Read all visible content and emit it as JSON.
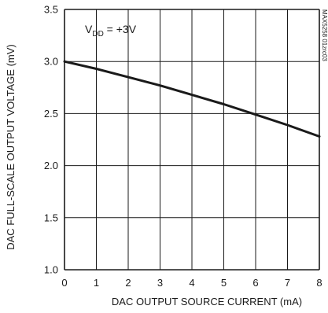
{
  "chart_data": {
    "type": "line",
    "xlabel": "DAC OUTPUT SOURCE CURRENT (mA)",
    "ylabel": "DAC FULL-SCALE OUTPUT VOLTAGE (mV)",
    "xlim": [
      0,
      8
    ],
    "ylim": [
      1.0,
      3.5
    ],
    "x_ticks": [
      "0",
      "1",
      "2",
      "3",
      "4",
      "5",
      "6",
      "7",
      "8"
    ],
    "y_ticks": [
      "3.5",
      "3.0",
      "2.5",
      "2.0",
      "1.5",
      "1.0"
    ],
    "grid": true,
    "annotation": {
      "main": "V",
      "sub": "DD",
      "rest": " = +3V"
    },
    "side_code": "MAX5258 01zrc03",
    "series": [
      {
        "x": [
          0,
          1,
          2,
          3,
          4,
          5,
          6,
          7,
          8
        ],
        "values": [
          3.0,
          2.93,
          2.85,
          2.77,
          2.68,
          2.59,
          2.49,
          2.39,
          2.28
        ]
      }
    ]
  }
}
